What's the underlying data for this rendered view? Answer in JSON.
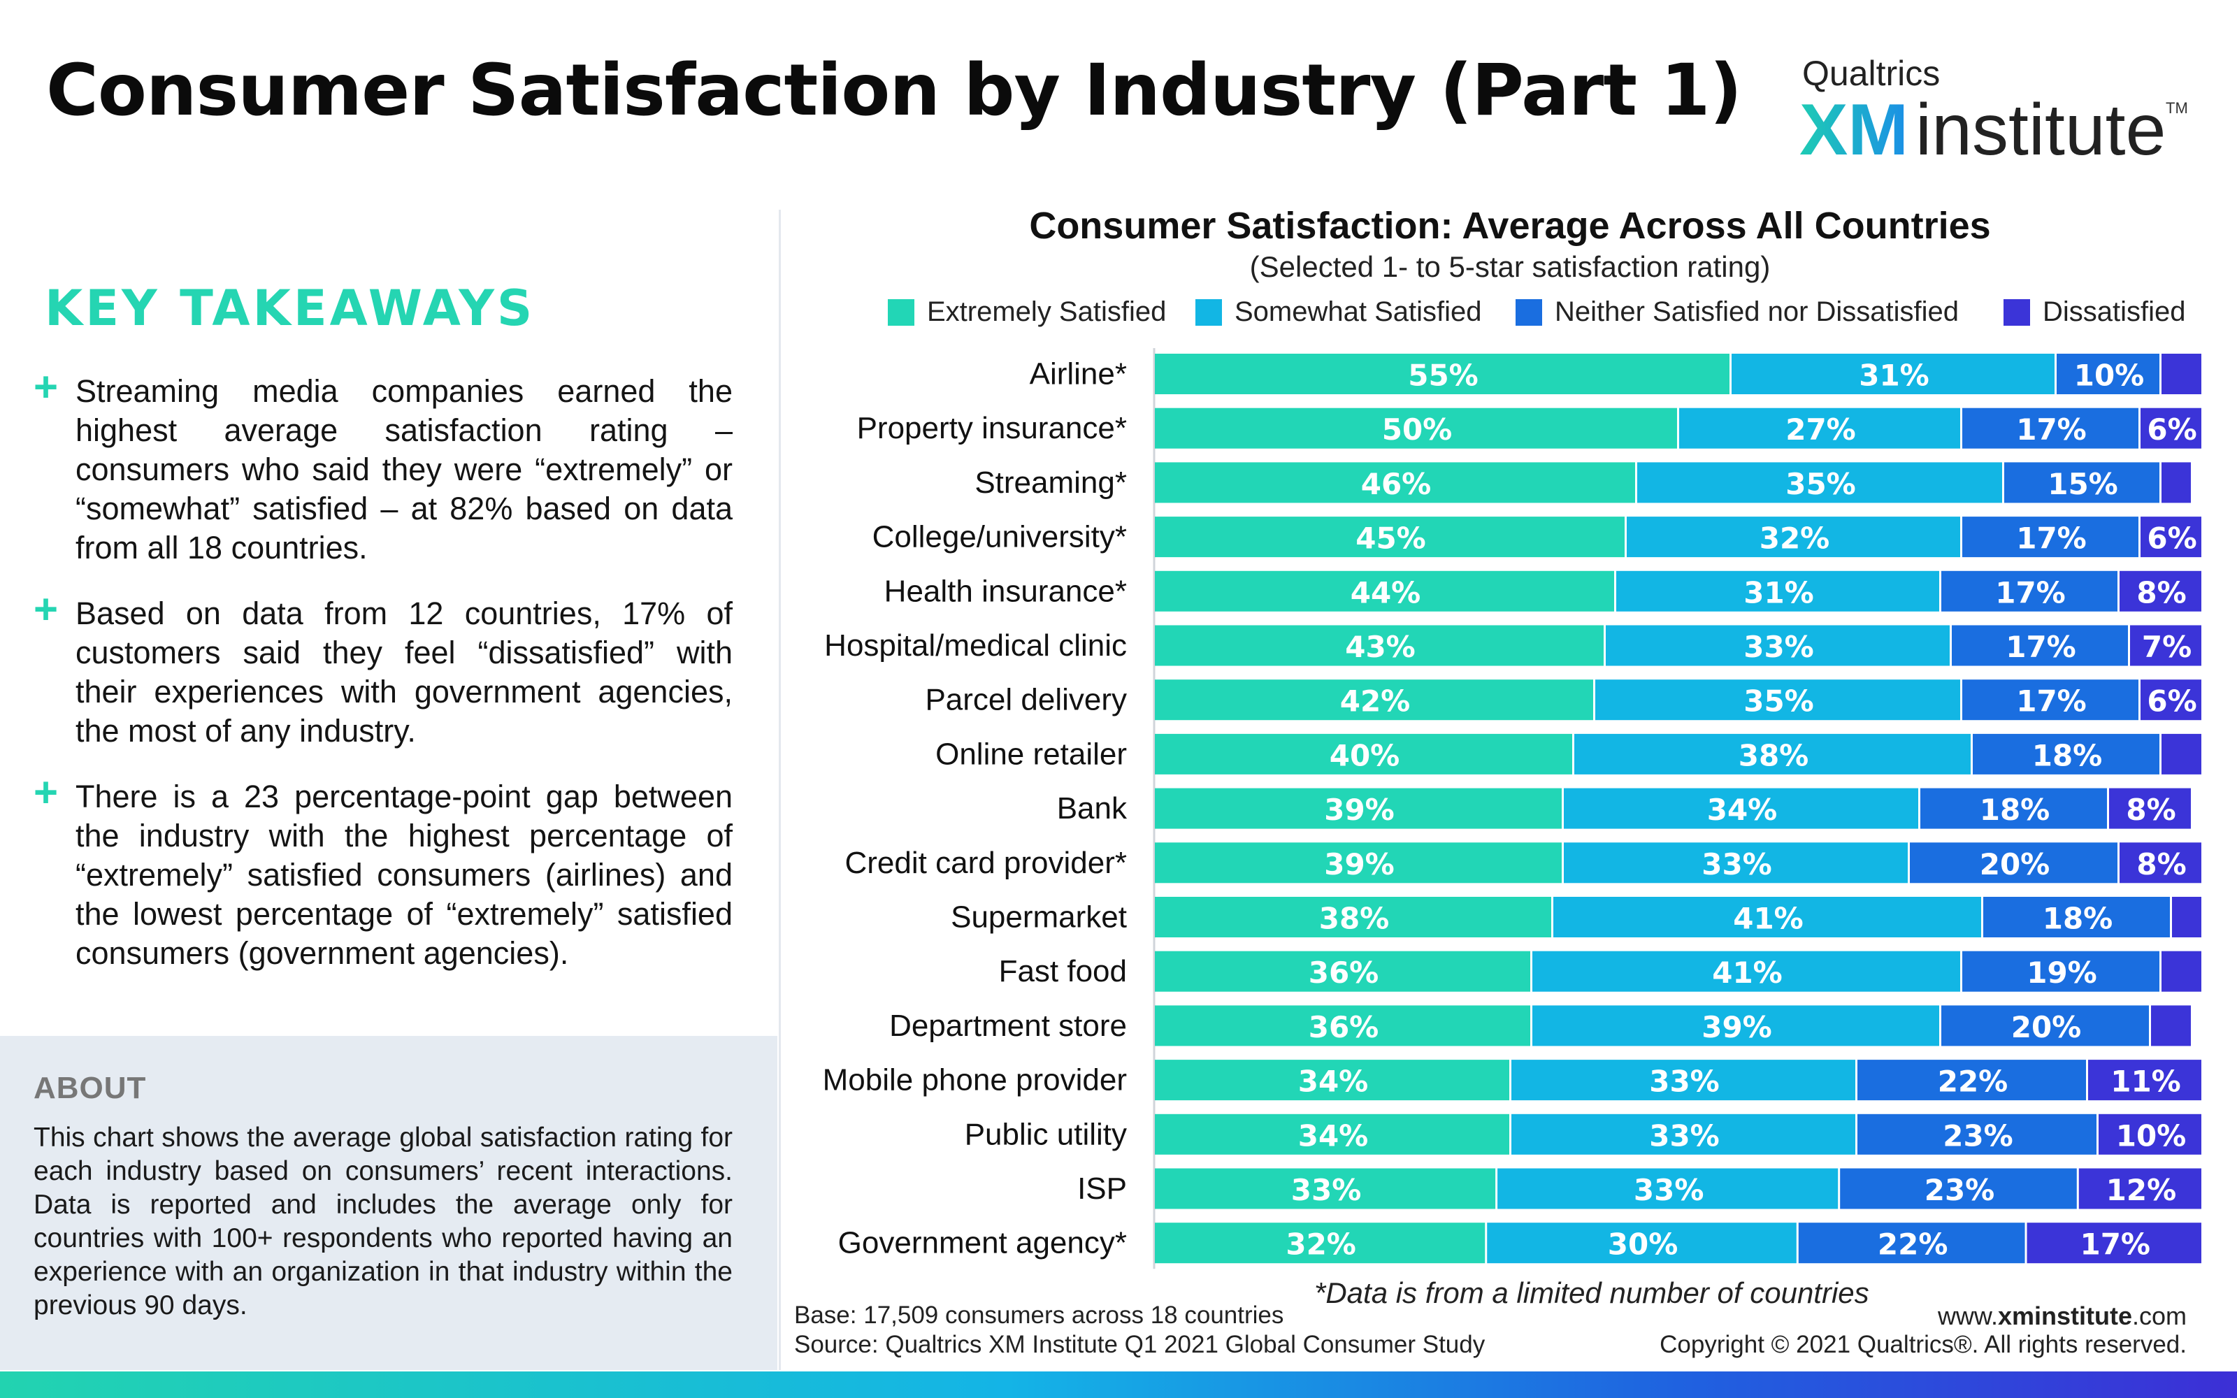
{
  "header": {
    "title": "Consumer Satisfaction by Industry (Part 1)",
    "logo_top": "Qualtrics",
    "logo_xm": "XM",
    "logo_institute": "institute",
    "logo_tm": "TM"
  },
  "takeaways": {
    "title": "KEY TAKEAWAYS",
    "items": [
      "Streaming media companies earned the highest average satisfaction rating – consumers who said they were “extremely” or “somewhat” satisfied – at 82% based on data from all 18 countries.",
      "Based on data from 12 countries, 17% of customers said they feel “dissatisfied” with their experiences with government agencies, the most of any industry.",
      "There is a 23 percentage-point gap between the industry with the highest percentage of “extremely” satisfied consumers (airlines) and the lowest percentage of “extremely” satisfied consumers (government agencies)."
    ]
  },
  "about": {
    "title": "ABOUT",
    "text": "This chart shows the average global satisfaction rating for each industry based on consumers’ recent interactions. Data is reported and includes the average only for countries with 100+ respondents who reported having an experience with an organization in that industry within the previous 90 days."
  },
  "chart_data": {
    "type": "bar",
    "orientation": "horizontal",
    "stacked": true,
    "title": "Consumer Satisfaction: Average Across All Countries",
    "subtitle": "(Selected 1- to 5-star satisfaction rating)",
    "legend_position": "top",
    "xlim": [
      0,
      100
    ],
    "categories": [
      "Airline*",
      "Property insurance*",
      "Streaming*",
      "College/university*",
      "Health insurance*",
      "Hospital/medical clinic",
      "Parcel delivery",
      "Online retailer",
      "Bank",
      "Credit card provider*",
      "Supermarket",
      "Fast food",
      "Department store",
      "Mobile phone provider",
      "Public utility",
      "ISP",
      "Government agency*"
    ],
    "series": [
      {
        "name": "Extremely Satisfied",
        "color": "#22d6b6",
        "values": [
          55,
          50,
          46,
          45,
          44,
          43,
          42,
          40,
          39,
          39,
          38,
          36,
          36,
          34,
          34,
          33,
          32
        ]
      },
      {
        "name": "Somewhat Satisfied",
        "color": "#12b6e4",
        "values": [
          31,
          27,
          35,
          32,
          31,
          33,
          35,
          38,
          34,
          33,
          41,
          41,
          39,
          33,
          33,
          33,
          30
        ]
      },
      {
        "name": "Neither Satisfied nor Dissatisfied",
        "color": "#1a6ee0",
        "values": [
          10,
          17,
          15,
          17,
          17,
          17,
          17,
          18,
          18,
          20,
          18,
          19,
          20,
          22,
          23,
          23,
          22
        ]
      },
      {
        "name": "Dissatisfied",
        "color": "#3b34d8",
        "values": [
          4,
          6,
          3,
          6,
          8,
          7,
          6,
          4,
          8,
          8,
          3,
          4,
          4,
          11,
          10,
          12,
          17
        ]
      }
    ],
    "data_labels": [
      [
        "55%",
        "50%",
        "46%",
        "45%",
        "44%",
        "43%",
        "42%",
        "40%",
        "39%",
        "39%",
        "38%",
        "36%",
        "36%",
        "34%",
        "34%",
        "33%",
        "32%"
      ],
      [
        "31%",
        "27%",
        "35%",
        "32%",
        "31%",
        "33%",
        "35%",
        "38%",
        "34%",
        "33%",
        "41%",
        "41%",
        "39%",
        "33%",
        "33%",
        "33%",
        "30%"
      ],
      [
        "10%",
        "17%",
        "15%",
        "17%",
        "17%",
        "17%",
        "17%",
        "18%",
        "18%",
        "20%",
        "18%",
        "19%",
        "20%",
        "22%",
        "23%",
        "23%",
        "22%"
      ],
      [
        "",
        "6%",
        "",
        "6%",
        "8%",
        "7%",
        "6%",
        "",
        "8%",
        "8%",
        "",
        "",
        "",
        "11%",
        "10%",
        "12%",
        "17%"
      ]
    ],
    "footnote": "*Data is from a limited number of countries"
  },
  "footer": {
    "base": "Base: 17,509 consumers across 18 countries",
    "source": "Source: Qualtrics XM Institute Q1 2021 Global Consumer Study",
    "website_prefix": "www.",
    "website_bold": "xminstitute",
    "website_suffix": ".com",
    "copyright": "Copyright © 2021 Qualtrics®. All rights reserved."
  }
}
